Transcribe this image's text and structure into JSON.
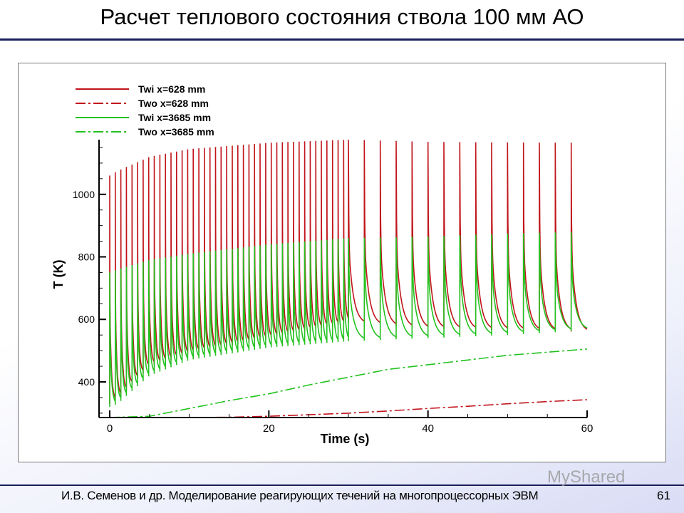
{
  "slide": {
    "title": "Расчет теплового состояния ствола 100 мм АО",
    "footer": "И.В. Семенов и др. Моделирование реагирующих течений на многопроцессорных ЭВМ",
    "page_number": "61",
    "watermark": "MyShared"
  },
  "chart_data": {
    "type": "line",
    "title": "",
    "xlabel": "Time (s)",
    "ylabel": "T (K)",
    "xlim": [
      0,
      60
    ],
    "ylim": [
      286,
      1175
    ],
    "xticks": [
      0,
      20,
      40,
      60
    ],
    "yticks": [
      400,
      600,
      800,
      1000
    ],
    "grid": false,
    "legend_position": "top-left",
    "pulse_schedule": [
      {
        "from": 0,
        "to": 30,
        "period": 0.7
      },
      {
        "from": 30,
        "to": 60,
        "period": 2.0
      }
    ],
    "series": [
      {
        "name": "Twi x=628 mm",
        "color": "#c0141b",
        "style": "solid",
        "kind": "pulsed",
        "time": [
          0,
          1,
          5,
          10,
          20,
          30,
          40,
          50,
          60
        ],
        "peak": [
          1060,
          1075,
          1120,
          1145,
          1165,
          1175,
          1168,
          1166,
          1165
        ],
        "trough": [
          330,
          345,
          450,
          490,
          540,
          590,
          570,
          565,
          560
        ]
      },
      {
        "name": "Two x=628 mm",
        "color": "#c0141b",
        "style": "dashdot",
        "kind": "smooth",
        "x": [
          0,
          10,
          15,
          20,
          25,
          30,
          35,
          40,
          45,
          50,
          55,
          60
        ],
        "y": [
          286,
          286,
          287,
          290,
          295,
          300,
          307,
          315,
          322,
          330,
          337,
          343
        ]
      },
      {
        "name": "Twi x=3685 mm",
        "color": "#22c21e",
        "style": "solid",
        "kind": "pulsed",
        "time": [
          0,
          1,
          5,
          10,
          20,
          30,
          40,
          50,
          60
        ],
        "peak": [
          750,
          760,
          790,
          810,
          840,
          860,
          865,
          875,
          880
        ],
        "trough": [
          320,
          330,
          420,
          470,
          510,
          530,
          540,
          550,
          565
        ]
      },
      {
        "name": "Two x=3685 mm",
        "color": "#22c21e",
        "style": "dashdot",
        "kind": "smooth",
        "x": [
          0,
          5,
          10,
          15,
          20,
          25,
          30,
          35,
          40,
          45,
          50,
          55,
          60
        ],
        "y": [
          286,
          290,
          315,
          340,
          362,
          390,
          415,
          440,
          455,
          470,
          485,
          495,
          505
        ]
      }
    ]
  }
}
